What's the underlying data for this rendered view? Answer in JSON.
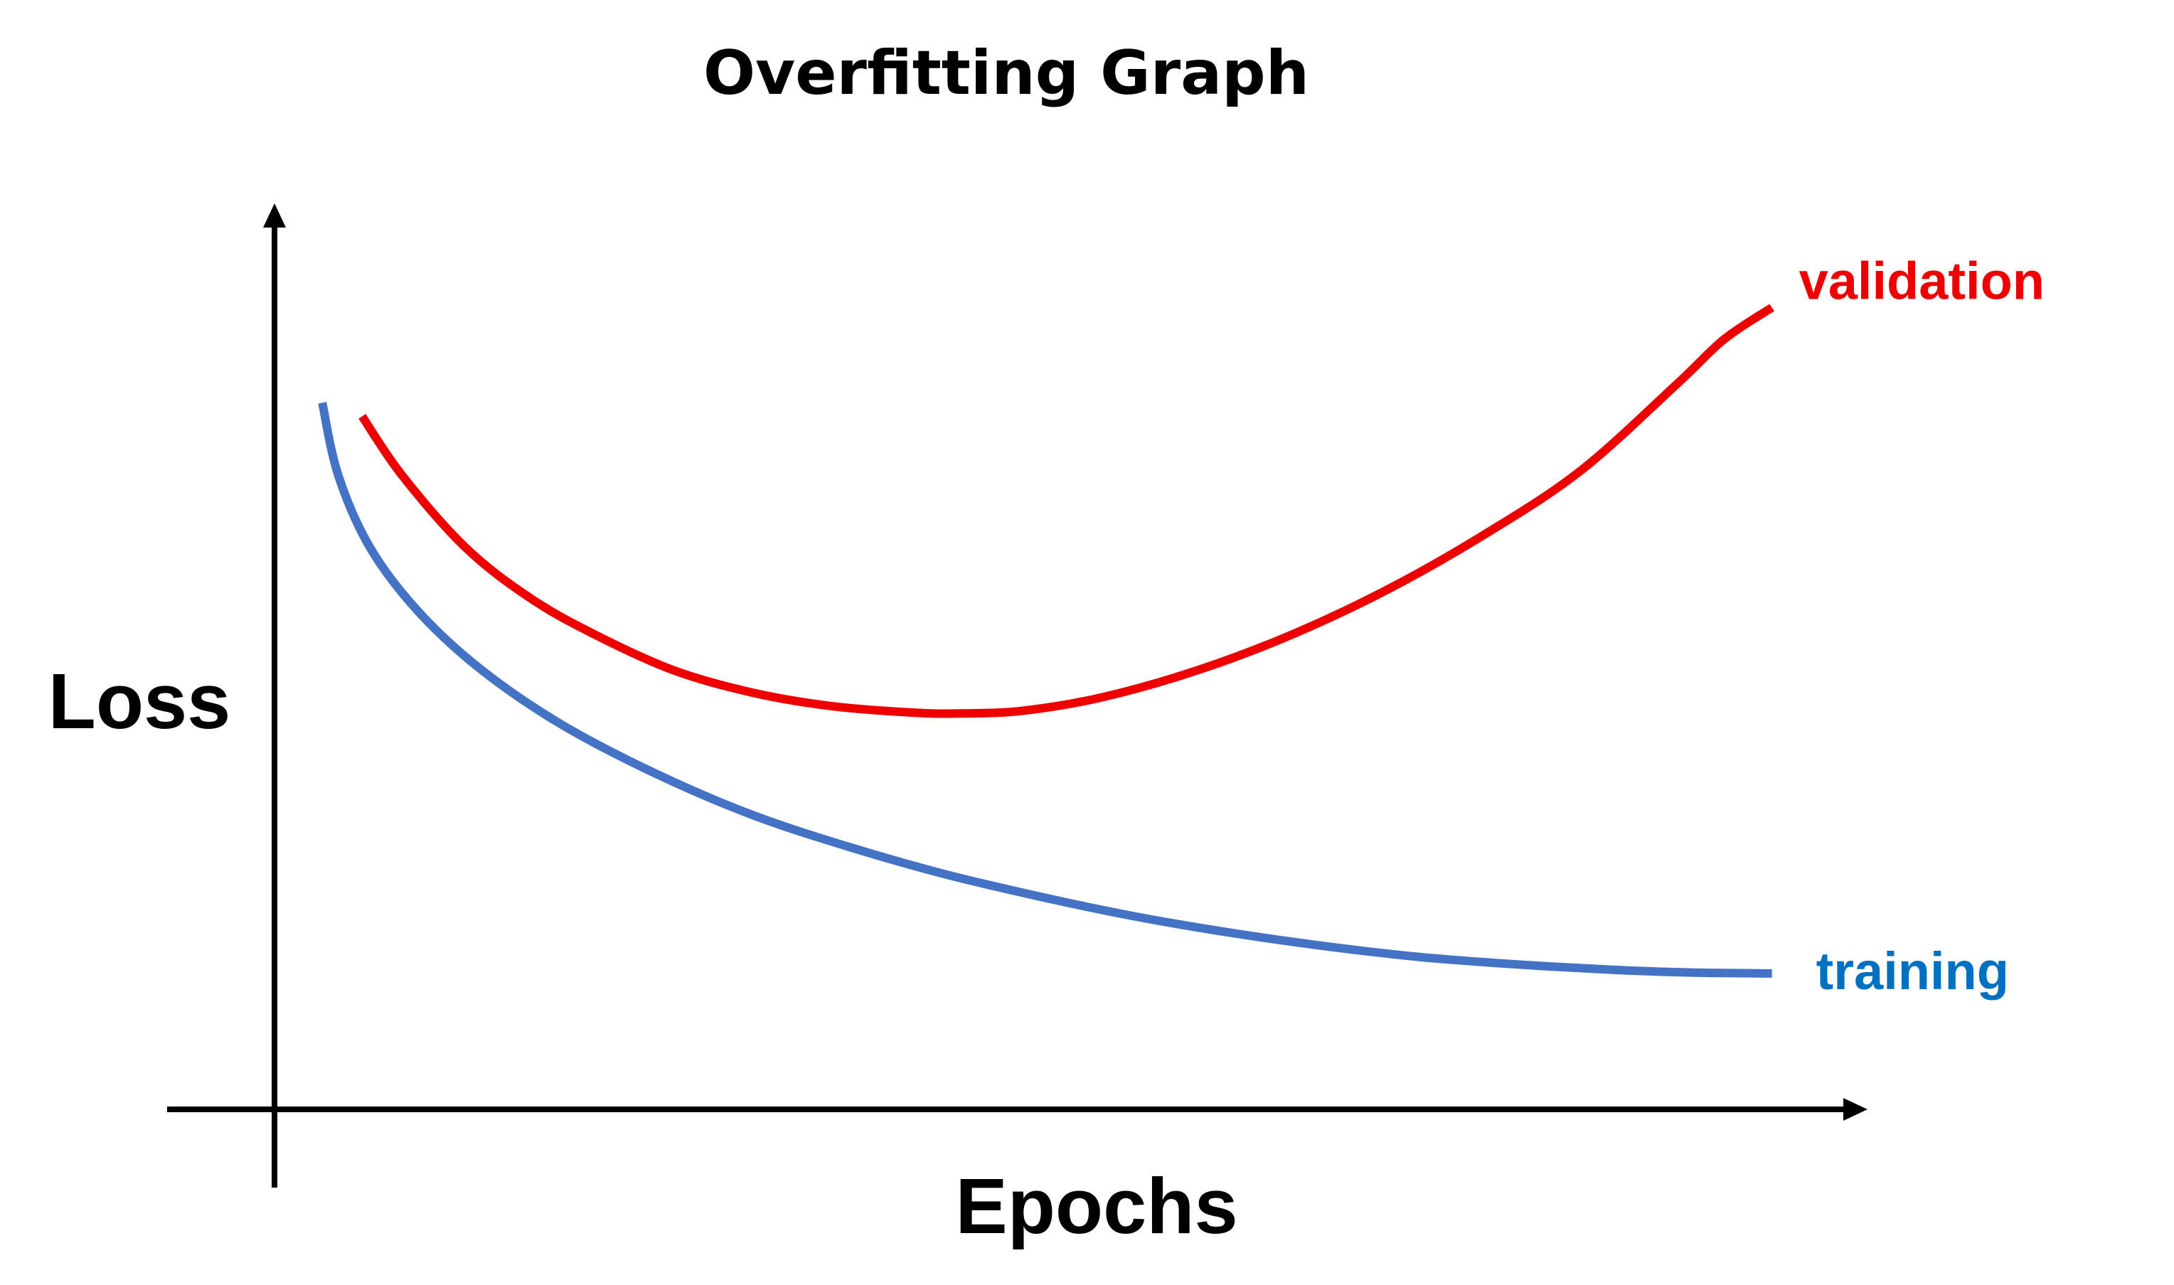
{
  "chart_data": {
    "type": "line",
    "title": "Overfitting Graph",
    "xlabel": "Epochs",
    "ylabel": "Loss",
    "grid": false,
    "ticks": false,
    "xlim": [
      0,
      100
    ],
    "ylim": [
      0,
      100
    ],
    "legend": "inline labels at right end of each curve",
    "series": [
      {
        "name": "validation",
        "label": "validation",
        "color": "#ee0000",
        "x": [
          5.5,
          8,
          12,
          16,
          20,
          25,
          30,
          35,
          40,
          43,
          47,
          52,
          58,
          64,
          70,
          76,
          82,
          88,
          91,
          94
        ],
        "y": [
          76.5,
          70,
          62,
          56.5,
          52.5,
          48.5,
          46,
          44.5,
          43.8,
          43.7,
          44,
          45.5,
          48.5,
          52.5,
          57.5,
          63.5,
          70.5,
          80,
          85,
          88.5
        ]
      },
      {
        "name": "training",
        "label": "training",
        "color": "#4472c4",
        "x": [
          3,
          4,
          6,
          9,
          13,
          18,
          24,
          30,
          36,
          42,
          48,
          54,
          60,
          66,
          72,
          78,
          84,
          89,
          94
        ],
        "y": [
          78,
          70,
          62,
          55,
          48.5,
          42.5,
          37,
          32.5,
          29,
          26,
          23.5,
          21.3,
          19.5,
          18,
          16.8,
          16,
          15.4,
          15.1,
          15
        ]
      }
    ],
    "label_colors": {
      "validation": "#ee0000",
      "training": "#0070c0"
    }
  }
}
